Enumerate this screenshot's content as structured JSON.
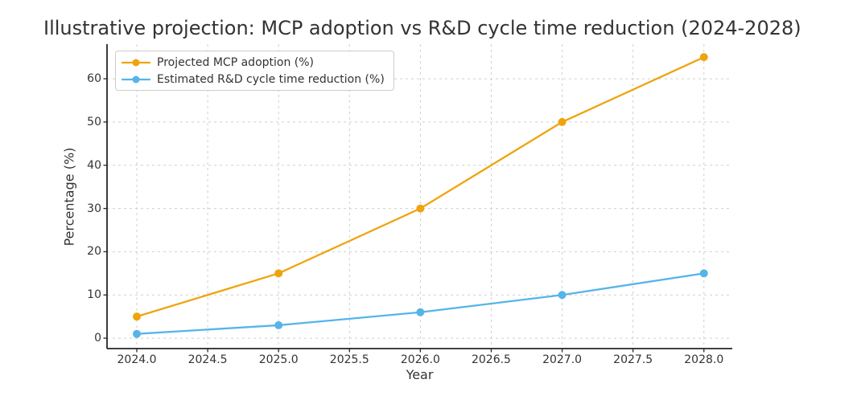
{
  "chart_data": {
    "type": "line",
    "title": "Illustrative projection: MCP adoption vs R&D cycle time reduction (2024-2028)",
    "xlabel": "Year",
    "ylabel": "Percentage (%)",
    "x": [
      2024,
      2025,
      2026,
      2027,
      2028
    ],
    "series": [
      {
        "name": "Projected MCP adoption (%)",
        "color": "#EFA40E",
        "marker": "circle",
        "values": [
          5,
          15,
          30,
          50,
          65
        ]
      },
      {
        "name": "Estimated R&D cycle time reduction (%)",
        "color": "#56B4E9",
        "marker": "circle",
        "values": [
          1,
          3,
          6,
          10,
          15
        ]
      }
    ],
    "x_ticks": [
      2024.0,
      2024.5,
      2025.0,
      2025.5,
      2026.0,
      2026.5,
      2027.0,
      2027.5,
      2028.0
    ],
    "x_tick_labels": [
      "2024.0",
      "2024.5",
      "2025.0",
      "2025.5",
      "2026.0",
      "2026.5",
      "2027.0",
      "2027.5",
      "2028.0"
    ],
    "y_ticks": [
      0,
      10,
      20,
      30,
      40,
      50,
      60
    ],
    "y_tick_labels": [
      "0",
      "10",
      "20",
      "30",
      "40",
      "50",
      "60"
    ],
    "xlim": [
      2023.79,
      2028.2
    ],
    "ylim": [
      -2.4,
      68
    ],
    "grid": true,
    "grid_style": "dashed",
    "legend_position": "upper-left",
    "colors": {
      "grid": "#cfcfcf",
      "spine": "#262626",
      "text": "#333333",
      "legend_border": "#cccccc",
      "background": "#ffffff"
    }
  }
}
